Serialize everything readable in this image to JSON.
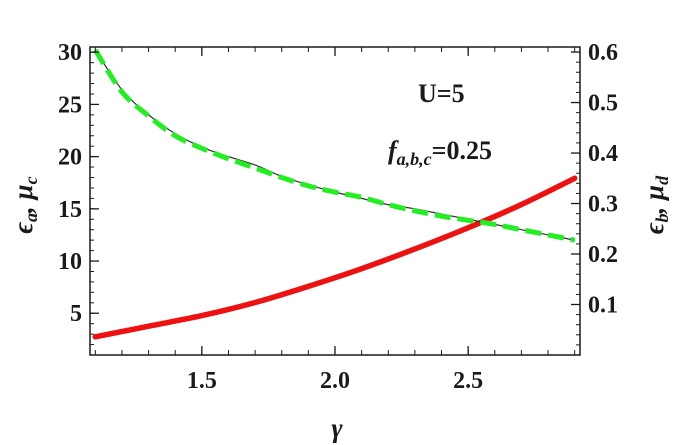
{
  "chart_data": {
    "type": "line",
    "xlabel": "γ",
    "x_ticks": [
      "1.5",
      "2.0",
      "2.5"
    ],
    "xlim": [
      1.08,
      2.92
    ],
    "y_left": {
      "label_main_1": "ϵ",
      "label_sub_1": "a",
      "label_sep": ", ",
      "label_main_2": "μ",
      "label_sub_2": "c",
      "ticks": [
        "5",
        "10",
        "15",
        "20",
        "25",
        "30"
      ],
      "ylim": [
        1.0,
        30.5
      ]
    },
    "y_right": {
      "label_main_1": "ϵ",
      "label_sub_1": "b",
      "label_sep": ", ",
      "label_main_2": "μ",
      "label_sub_2": "d",
      "ticks": [
        "0.1",
        "0.2",
        "0.3",
        "0.4",
        "0.5",
        "0.6"
      ],
      "ylim": [
        0.0,
        0.61
      ]
    },
    "annotations": {
      "u_label": "U=5",
      "f_main": "f",
      "f_sub": "a,b,c",
      "f_value": "=0.25"
    },
    "series": [
      {
        "axis": "right",
        "color": "#ee1111",
        "style": "solid",
        "x": [
          1.1,
          1.3,
          1.5,
          1.7,
          1.9,
          2.1,
          2.3,
          2.5,
          2.7,
          2.9
        ],
        "y": [
          0.036,
          0.057,
          0.078,
          0.104,
          0.136,
          0.171,
          0.21,
          0.252,
          0.298,
          0.35
        ]
      },
      {
        "axis": "left",
        "color": "#333333",
        "style": "thin",
        "x": [
          1.1,
          1.2,
          1.3,
          1.4,
          1.5,
          1.6,
          1.7,
          1.8,
          1.9,
          2.0,
          2.1,
          2.2,
          2.3,
          2.4,
          2.5,
          2.6,
          2.7,
          2.8,
          2.9
        ],
        "y": [
          30.2,
          26.4,
          24.0,
          22.2,
          20.9,
          20.0,
          19.2,
          18.1,
          17.3,
          16.6,
          16.0,
          15.4,
          15.0,
          14.5,
          14.0,
          13.5,
          13.0,
          12.5,
          12.0
        ]
      },
      {
        "axis": "left",
        "color": "#22ee22",
        "style": "dashed",
        "x": [
          1.1,
          1.2,
          1.3,
          1.4,
          1.5,
          1.6,
          1.7,
          1.8,
          1.9,
          2.0,
          2.1,
          2.2,
          2.3,
          2.4,
          2.5,
          2.6,
          2.7,
          2.8,
          2.9
        ],
        "y": [
          30.2,
          26.2,
          23.9,
          22.0,
          20.8,
          19.8,
          18.9,
          18.0,
          17.2,
          16.6,
          16.1,
          15.4,
          14.8,
          14.3,
          13.9,
          13.5,
          13.0,
          12.5,
          12.0
        ]
      }
    ]
  }
}
